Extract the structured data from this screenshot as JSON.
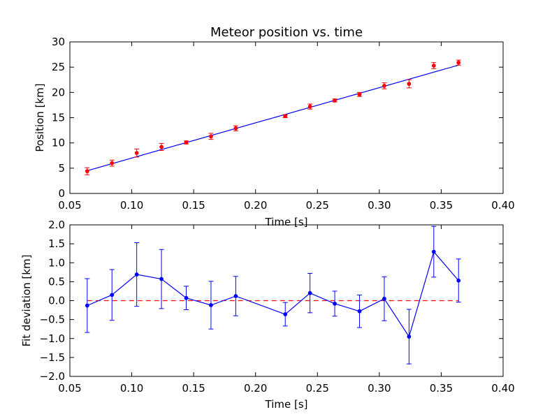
{
  "chart_data": [
    {
      "type": "scatter",
      "title": "Meteor position vs. time",
      "xlabel": "Time [s]",
      "ylabel": "Position [km]",
      "xlim": [
        0.05,
        0.4
      ],
      "ylim": [
        0,
        30
      ],
      "xticks": [
        "0.05",
        "0.10",
        "0.15",
        "0.20",
        "0.25",
        "0.30",
        "0.35",
        "0.40"
      ],
      "xtick_values": [
        0.05,
        0.1,
        0.15,
        0.2,
        0.25,
        0.3,
        0.35,
        0.4
      ],
      "yticks": [
        "0",
        "5",
        "10",
        "15",
        "20",
        "25",
        "30"
      ],
      "ytick_values": [
        0,
        5,
        10,
        15,
        20,
        25,
        30
      ],
      "grid": false,
      "points": {
        "color": "#ff0000",
        "x": [
          0.064,
          0.084,
          0.104,
          0.124,
          0.144,
          0.164,
          0.184,
          0.224,
          0.244,
          0.264,
          0.284,
          0.304,
          0.324,
          0.344,
          0.364
        ],
        "y": [
          4.4,
          6.0,
          8.0,
          9.2,
          10.1,
          11.3,
          12.9,
          15.3,
          17.2,
          18.4,
          19.6,
          21.3,
          21.7,
          25.3,
          25.9
        ],
        "err": [
          0.7,
          0.6,
          0.8,
          0.7,
          0.3,
          0.6,
          0.5,
          0.3,
          0.5,
          0.3,
          0.4,
          0.6,
          0.8,
          0.6,
          0.5
        ]
      },
      "fit_line": {
        "color": "#0000ff",
        "x": [
          0.064,
          0.364
        ],
        "y": [
          4.5,
          25.4
        ]
      }
    },
    {
      "type": "line",
      "title": "",
      "xlabel": "Time [s]",
      "ylabel": "Fit deviation [km]",
      "xlim": [
        0.05,
        0.4
      ],
      "ylim": [
        -2.0,
        2.0
      ],
      "xticks": [
        "0.05",
        "0.10",
        "0.15",
        "0.20",
        "0.25",
        "0.30",
        "0.35",
        "0.40"
      ],
      "xtick_values": [
        0.05,
        0.1,
        0.15,
        0.2,
        0.25,
        0.3,
        0.35,
        0.4
      ],
      "yticks": [
        "2.0",
        "1.5",
        "1.0",
        "0.5",
        "0.0",
        "−0.5",
        "−1.0",
        "−1.5",
        "−2.0"
      ],
      "ytick_values": [
        2.0,
        1.5,
        1.0,
        0.5,
        0.0,
        -0.5,
        -1.0,
        -1.5,
        -2.0
      ],
      "grid": false,
      "series": {
        "color": "#0000ff",
        "x": [
          0.064,
          0.084,
          0.104,
          0.124,
          0.144,
          0.164,
          0.184,
          0.224,
          0.244,
          0.264,
          0.284,
          0.304,
          0.324,
          0.344,
          0.364
        ],
        "y": [
          -0.13,
          0.15,
          0.69,
          0.57,
          0.07,
          -0.12,
          0.12,
          -0.36,
          0.2,
          -0.08,
          -0.28,
          0.05,
          -0.95,
          1.29,
          0.53
        ],
        "err": [
          0.71,
          0.67,
          0.84,
          0.78,
          0.31,
          0.63,
          0.52,
          0.31,
          0.52,
          0.33,
          0.43,
          0.58,
          0.72,
          0.67,
          0.57
        ]
      },
      "zero_line": {
        "color": "#ff0000",
        "y": 0.0
      }
    }
  ]
}
